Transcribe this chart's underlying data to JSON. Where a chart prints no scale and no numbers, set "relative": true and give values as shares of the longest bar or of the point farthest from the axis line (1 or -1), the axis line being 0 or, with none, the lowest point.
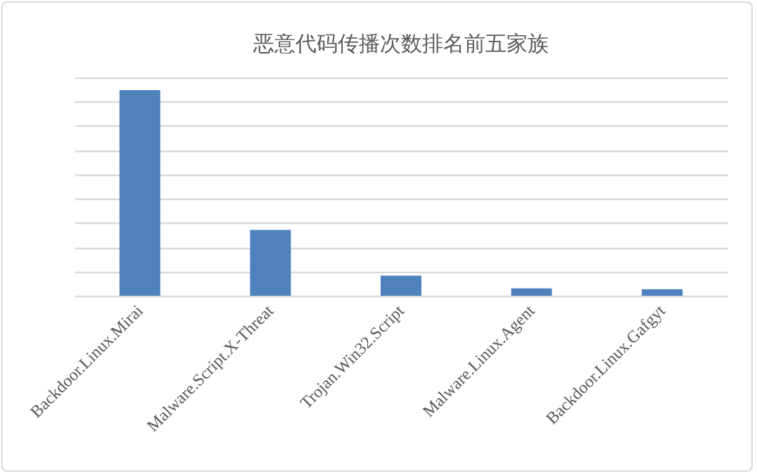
{
  "chart_data": {
    "type": "bar",
    "title": "恶意代码传播次数排名前五家族",
    "relative": true,
    "grid": "y",
    "categories": [
      "Backdoor.Linux.Mirai",
      "Malware.Script.X-Threat",
      "Trojan.Win32.Script",
      "Malware.Linux.Agent",
      "Backdoor.Linux.Gafgyt"
    ],
    "values": [
      1,
      0.32,
      0.098,
      0.036,
      0.032
    ],
    "color": "#4f81bd"
  }
}
